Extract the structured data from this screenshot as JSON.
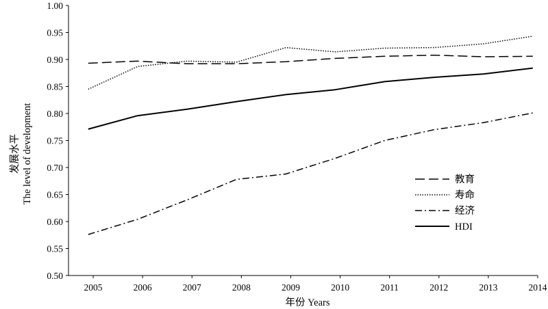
{
  "chart_data": {
    "type": "line",
    "title": "",
    "xlabel": "年份 Years",
    "ylabel_cn": "发展水平",
    "ylabel_en": "The level of development",
    "xlim": [
      2004.5,
      2014
    ],
    "ylim": [
      0.5,
      1.0
    ],
    "xticks": [
      "2005",
      "2006",
      "2007",
      "2008",
      "2009",
      "2010",
      "2011",
      "2012",
      "2013",
      "2014"
    ],
    "yticks": [
      "0.50",
      "0.55",
      "0.60",
      "0.65",
      "0.70",
      "0.75",
      "0.80",
      "0.85",
      "0.90",
      "0.95",
      "1.00"
    ],
    "grid": false,
    "legend_position": "lower-right",
    "x": [
      2004.9,
      2005.9,
      2006.9,
      2007.9,
      2008.9,
      2009.9,
      2010.9,
      2011.9,
      2012.9,
      2013.9
    ],
    "series": [
      {
        "name": "教育",
        "style": "dashed",
        "values": [
          0.893,
          0.897,
          0.892,
          0.892,
          0.896,
          0.902,
          0.906,
          0.908,
          0.905,
          0.906
        ]
      },
      {
        "name": "寿命",
        "style": "dotted",
        "values": [
          0.845,
          0.887,
          0.897,
          0.895,
          0.922,
          0.914,
          0.921,
          0.922,
          0.929,
          0.943
        ]
      },
      {
        "name": "经济",
        "style": "dashdot",
        "values": [
          0.576,
          0.604,
          0.64,
          0.678,
          0.688,
          0.717,
          0.75,
          0.77,
          0.783,
          0.801
        ]
      },
      {
        "name": "HDI",
        "style": "solid",
        "values": [
          0.771,
          0.796,
          0.808,
          0.822,
          0.835,
          0.844,
          0.859,
          0.867,
          0.873,
          0.884
        ]
      }
    ]
  }
}
